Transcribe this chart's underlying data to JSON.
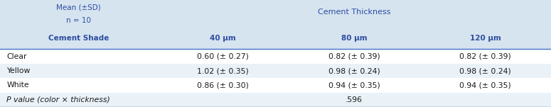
{
  "header_line1": "Mean (±SD)",
  "header_line2": "n = 10",
  "header_col": "Cement Shade",
  "main_header": "Cement Thickness",
  "col_headers": [
    "40 μm",
    "80 μm",
    "120 μm"
  ],
  "rows": [
    [
      "Clear",
      "0.60 (± 0.27)",
      "0.82 (± 0.39)",
      "0.82 (± 0.39)"
    ],
    [
      "Yellow",
      "1.02 (± 0.35)",
      "0.98 (± 0.24)",
      "0.98 (± 0.24)"
    ],
    [
      "White",
      "0.86 (± 0.30)",
      "0.94 (± 0.35)",
      "0.94 (± 0.35)"
    ]
  ],
  "pvalue_label": "P value (color × thickness)",
  "pvalue": ".596",
  "header_bg": "#d6e4f0",
  "row_bg_even": "#eaf2f8",
  "row_bg_odd": "#ffffff",
  "blue_color": "#2e4da0",
  "text_color": "#1a1a1a",
  "line_color": "#4472c4",
  "figsize": [
    7.75,
    1.51
  ],
  "dpi": 100
}
